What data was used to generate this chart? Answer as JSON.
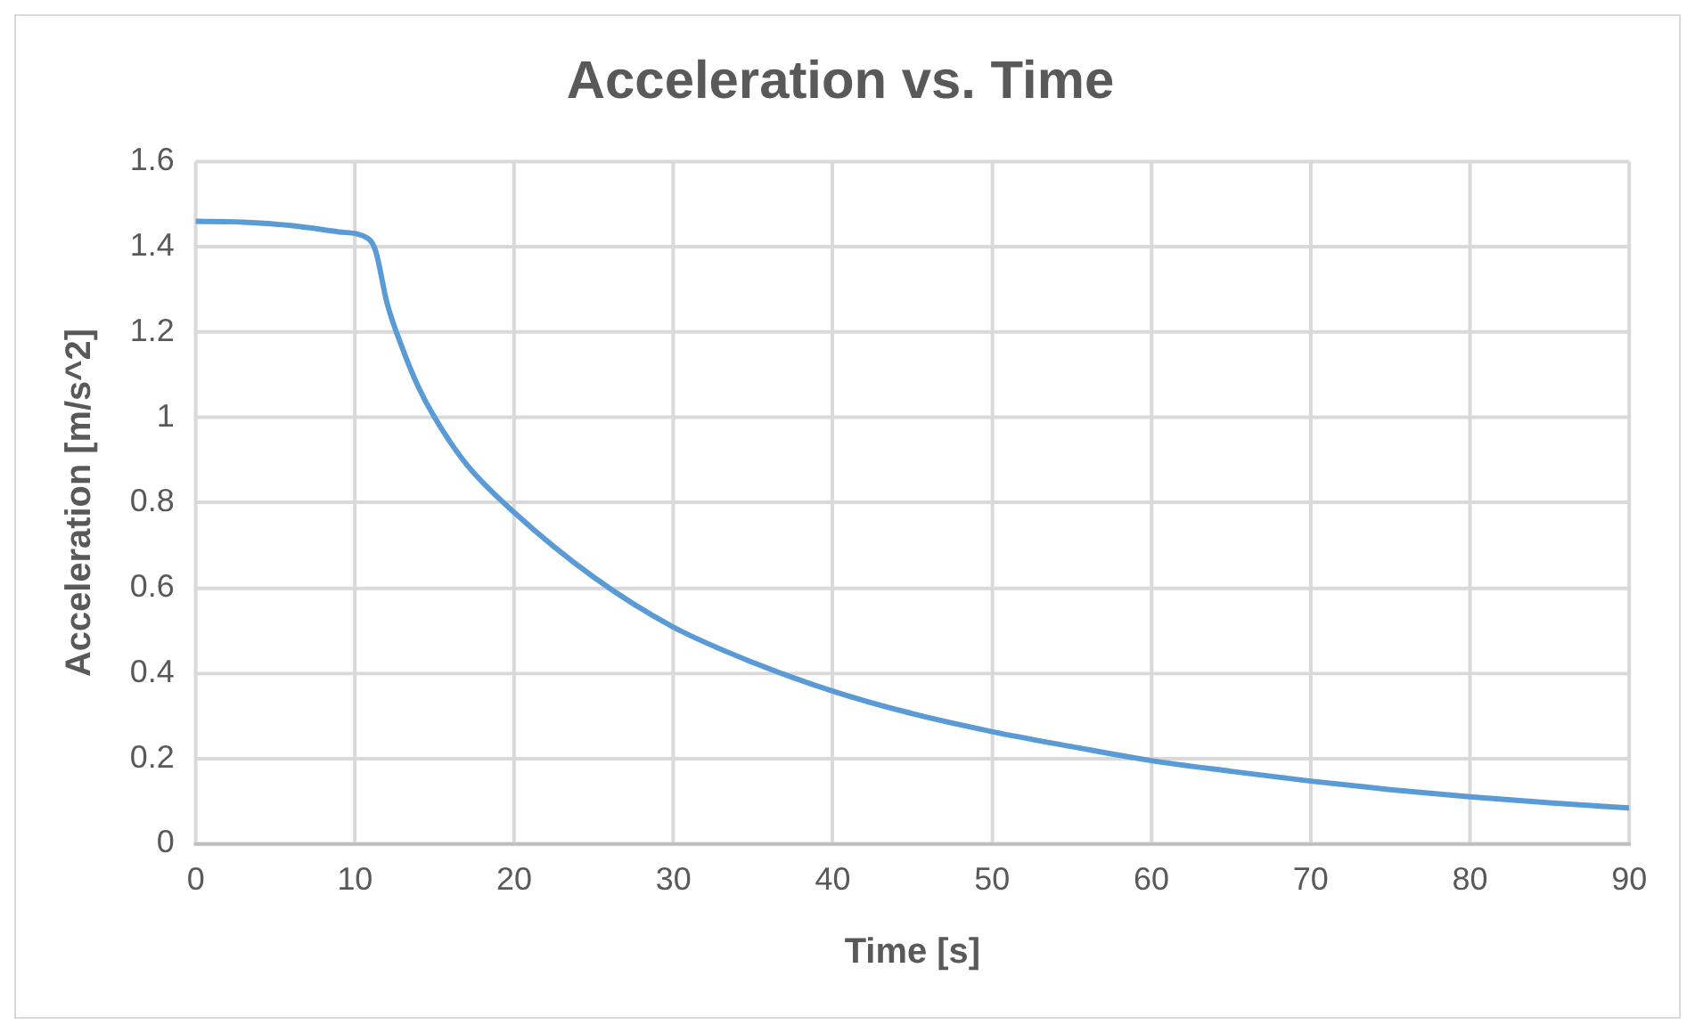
{
  "chart_data": {
    "type": "line",
    "title": "Acceleration vs. Time",
    "xlabel": "Time [s]",
    "ylabel": "Acceleration [m/s^2]",
    "xlim": [
      0,
      90
    ],
    "xticks": [
      0,
      10,
      20,
      30,
      40,
      50,
      60,
      70,
      80,
      90
    ],
    "ylim": [
      0,
      1.6
    ],
    "yticks": [
      0,
      0.2,
      0.4,
      0.6,
      0.8,
      1,
      1.2,
      1.4,
      1.6
    ],
    "grid": true,
    "legend": false,
    "marker": "none",
    "line_style": "solid",
    "series": [
      {
        "color": "#5b9bd5",
        "x": [
          0,
          3,
          6,
          9,
          10.8,
          11.3,
          12,
          13,
          14,
          15,
          17,
          20,
          25,
          30,
          35,
          40,
          45,
          50,
          55,
          60,
          65,
          70,
          75,
          80,
          85,
          90
        ],
        "values": [
          1.46,
          1.458,
          1.45,
          1.435,
          1.42,
          1.39,
          1.27,
          1.16,
          1.07,
          1.0,
          0.89,
          0.777,
          0.625,
          0.508,
          0.425,
          0.358,
          0.305,
          0.263,
          0.228,
          0.195,
          0.17,
          0.147,
          0.127,
          0.11,
          0.096,
          0.084
        ]
      }
    ]
  }
}
